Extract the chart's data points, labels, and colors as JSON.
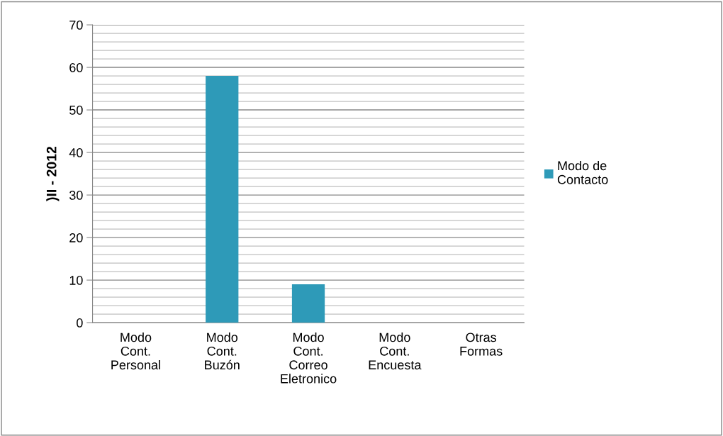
{
  "chart_data": {
    "type": "bar",
    "ylabel": ")II - 2012",
    "categories": [
      "Modo\nCont.\nPersonal",
      "Modo\nCont.\nBuzón",
      "Modo\nCont.\nCorreo\nEletronico",
      "Modo\nCont.\nEncuesta",
      "Otras\nFormas"
    ],
    "series": [
      {
        "name": "Modo de\nContacto",
        "color": "#2e9ab8",
        "values": [
          0,
          58,
          9,
          0,
          0
        ]
      }
    ],
    "ylim": [
      0,
      70
    ],
    "yticks": [
      0,
      10,
      20,
      30,
      40,
      50,
      60,
      70
    ],
    "grid": "y",
    "legend": "right"
  }
}
